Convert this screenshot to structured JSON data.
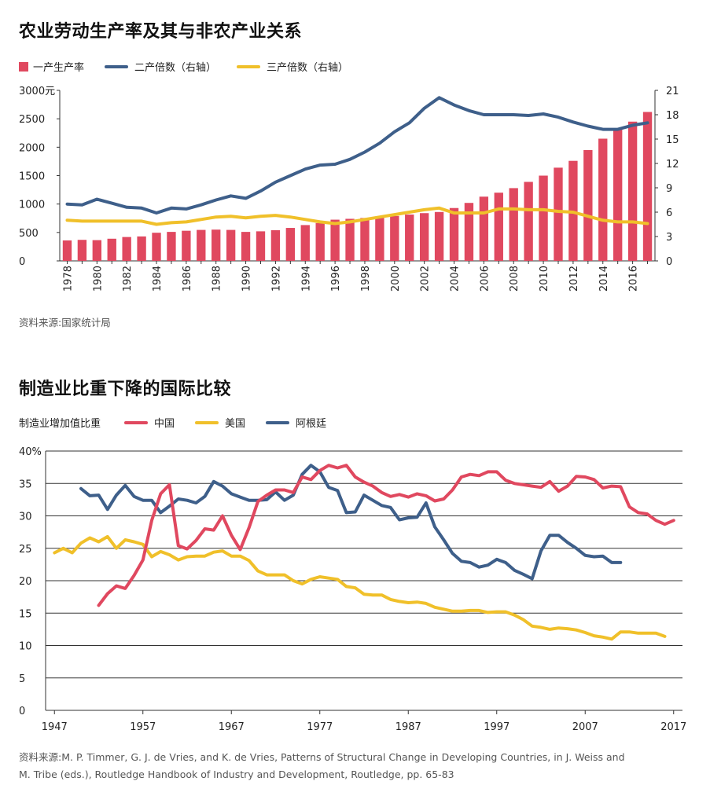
{
  "chart1": {
    "title": "农业劳动生产率及其与非农产业关系",
    "legend": {
      "bars": "一产生产率",
      "line2": "二产倍数（右轴）",
      "line3": "三产倍数（右轴）"
    },
    "colors": {
      "bars": "#e0485f",
      "line2": "#3e5f8a",
      "line3": "#f0c02a"
    },
    "source": "资料来源:国家统计局",
    "chart_data": {
      "type": "bar+line",
      "years": [
        1978,
        1979,
        1980,
        1981,
        1982,
        1983,
        1984,
        1985,
        1986,
        1987,
        1988,
        1989,
        1990,
        1991,
        1992,
        1993,
        1994,
        1995,
        1996,
        1997,
        1998,
        1999,
        2000,
        2001,
        2002,
        2003,
        2004,
        2005,
        2006,
        2007,
        2008,
        2009,
        2010,
        2011,
        2012,
        2013,
        2014,
        2015,
        2016,
        2017
      ],
      "x_tick_labels": [
        "1978",
        "1980",
        "1982",
        "1984",
        "1986",
        "1988",
        "1990",
        "1992",
        "1994",
        "1996",
        "1998",
        "2000",
        "2002",
        "2004",
        "2006",
        "2008",
        "2010",
        "2012",
        "2014",
        "2016"
      ],
      "left_axis": {
        "unit_label": "3000元",
        "ticks": [
          "0",
          "500",
          "1000",
          "1500",
          "2000",
          "2500"
        ],
        "tick_values": [
          0,
          500,
          1000,
          1500,
          2000,
          2500,
          3000
        ],
        "range": [
          0,
          3000
        ]
      },
      "right_axis": {
        "ticks": [
          "0",
          "3",
          "6",
          "9",
          "12",
          "15",
          "18",
          "21"
        ],
        "tick_values": [
          0,
          3,
          6,
          9,
          12,
          15,
          18,
          21
        ],
        "range": [
          0,
          21
        ]
      },
      "series": [
        {
          "name": "一产生产率",
          "kind": "bar",
          "axis": "left",
          "values": [
            360,
            370,
            365,
            390,
            420,
            430,
            495,
            510,
            530,
            545,
            550,
            545,
            510,
            520,
            540,
            580,
            630,
            665,
            725,
            740,
            755,
            770,
            790,
            815,
            840,
            860,
            930,
            1020,
            1130,
            1200,
            1280,
            1390,
            1500,
            1640,
            1760,
            1950,
            2150,
            2330,
            2450,
            2620
          ]
        },
        {
          "name": "二产倍数（右轴）",
          "kind": "line",
          "axis": "right",
          "values": [
            7.0,
            6.9,
            7.6,
            7.1,
            6.6,
            6.5,
            5.9,
            6.5,
            6.4,
            6.9,
            7.5,
            8.0,
            7.7,
            8.6,
            9.7,
            10.5,
            11.3,
            11.8,
            11.9,
            12.5,
            13.4,
            14.5,
            15.9,
            17.0,
            18.8,
            20.1,
            19.2,
            18.5,
            18.0,
            18.0,
            18.0,
            17.9,
            18.1,
            17.7,
            17.1,
            16.6,
            16.2,
            16.2,
            16.7,
            17.0
          ]
        },
        {
          "name": "三产倍数（右轴）",
          "kind": "line",
          "axis": "right",
          "values": [
            5.0,
            4.9,
            4.9,
            4.9,
            4.9,
            4.9,
            4.5,
            4.7,
            4.8,
            5.1,
            5.4,
            5.5,
            5.3,
            5.5,
            5.6,
            5.4,
            5.1,
            4.8,
            4.6,
            4.8,
            5.1,
            5.4,
            5.7,
            6.0,
            6.3,
            6.5,
            5.9,
            5.9,
            5.9,
            6.4,
            6.4,
            6.3,
            6.3,
            6.1,
            6.0,
            5.5,
            5.0,
            4.8,
            4.8,
            4.6
          ]
        }
      ]
    }
  },
  "chart2": {
    "title": "制造业比重下降的国际比较",
    "legend": {
      "axis_label": "制造业增加值比重",
      "china": "中国",
      "us": "美国",
      "argentina": "阿根廷"
    },
    "colors": {
      "china": "#e0485f",
      "us": "#f0c02a",
      "argentina": "#3e5f8a"
    },
    "source_line1": "资料来源:M. P. Timmer, G. J. de Vries, and K. de Vries, Patterns of Structural Change in Developing Countries, in J. Weiss and",
    "source_line2": "M. Tribe (eds.), Routledge Handbook of Industry and Development, Routledge, pp. 65-83",
    "chart_data": {
      "type": "line",
      "y_axis": {
        "ticks": [
          "0",
          "5",
          "10",
          "15",
          "20",
          "25",
          "30",
          "35",
          "40%"
        ],
        "tick_values": [
          0,
          5,
          10,
          15,
          20,
          25,
          30,
          35,
          40
        ],
        "range": [
          0,
          40
        ]
      },
      "x_axis": {
        "ticks": [
          "1947",
          "1957",
          "1967",
          "1977",
          "1987",
          "1997",
          "2007",
          "2017"
        ],
        "tick_values": [
          1947,
          1957,
          1967,
          1977,
          1987,
          1997,
          2007,
          2017
        ],
        "range": [
          1946,
          2018
        ]
      },
      "series": [
        {
          "name": "中国",
          "x_start": 1952,
          "values": [
            16.2,
            18.0,
            19.2,
            18.8,
            20.8,
            23.2,
            29.3,
            33.4,
            34.8,
            25.4,
            24.9,
            26.2,
            28.0,
            27.8,
            30.0,
            27.0,
            24.8,
            28.2,
            32.2,
            33.2,
            34.0,
            34.0,
            33.6,
            36.0,
            35.6,
            37.0,
            37.8,
            37.4,
            37.8,
            36.0,
            35.2,
            34.6,
            33.6,
            33.0,
            33.3,
            32.9,
            33.4,
            33.1,
            32.3,
            32.6,
            34.0,
            36.0,
            36.4,
            36.2,
            36.8,
            36.8,
            35.5,
            35.0,
            34.8,
            34.6,
            34.4,
            35.3,
            33.8,
            34.6,
            36.1,
            36.0,
            35.6,
            34.3,
            34.6,
            34.5,
            31.4,
            30.5,
            30.3,
            29.3,
            28.7,
            29.3
          ]
        },
        {
          "name": "美国",
          "x_start": 1947,
          "values": [
            24.3,
            25.0,
            24.3,
            25.8,
            26.6,
            26.0,
            26.8,
            25.0,
            26.3,
            26.0,
            25.6,
            23.7,
            24.5,
            24.0,
            23.2,
            23.7,
            23.8,
            23.8,
            24.4,
            24.6,
            23.8,
            23.8,
            23.1,
            21.5,
            20.9,
            20.9,
            20.9,
            20.0,
            19.5,
            20.2,
            20.6,
            20.4,
            20.2,
            19.1,
            18.9,
            17.9,
            17.8,
            17.8,
            17.1,
            16.8,
            16.6,
            16.7,
            16.5,
            15.9,
            15.6,
            15.3,
            15.3,
            15.4,
            15.4,
            15.1,
            15.2,
            15.2,
            14.7,
            14.0,
            13.0,
            12.8,
            12.5,
            12.7,
            12.6,
            12.4,
            12.0,
            11.5,
            11.3,
            11.0,
            12.1,
            12.1,
            11.9,
            11.9,
            11.9,
            11.4
          ]
        },
        {
          "name": "阿根廷",
          "x_start": 1950,
          "values": [
            34.2,
            33.1,
            33.2,
            31.0,
            33.2,
            34.7,
            33.0,
            32.4,
            32.4,
            30.5,
            31.5,
            32.6,
            32.4,
            32.0,
            33.0,
            35.3,
            34.6,
            33.4,
            32.9,
            32.4,
            32.4,
            32.5,
            33.7,
            32.4,
            33.2,
            36.4,
            37.8,
            36.8,
            34.4,
            33.9,
            30.5,
            30.6,
            33.2,
            32.4,
            31.6,
            31.3,
            29.4,
            29.7,
            29.8,
            32.0,
            28.3,
            26.3,
            24.2,
            23.0,
            22.8,
            22.1,
            22.4,
            23.3,
            22.8,
            21.6,
            21.0,
            20.3,
            24.6,
            27.0,
            27.0,
            25.9,
            25.0,
            23.9,
            23.7,
            23.8,
            22.8,
            22.8
          ]
        }
      ]
    }
  }
}
